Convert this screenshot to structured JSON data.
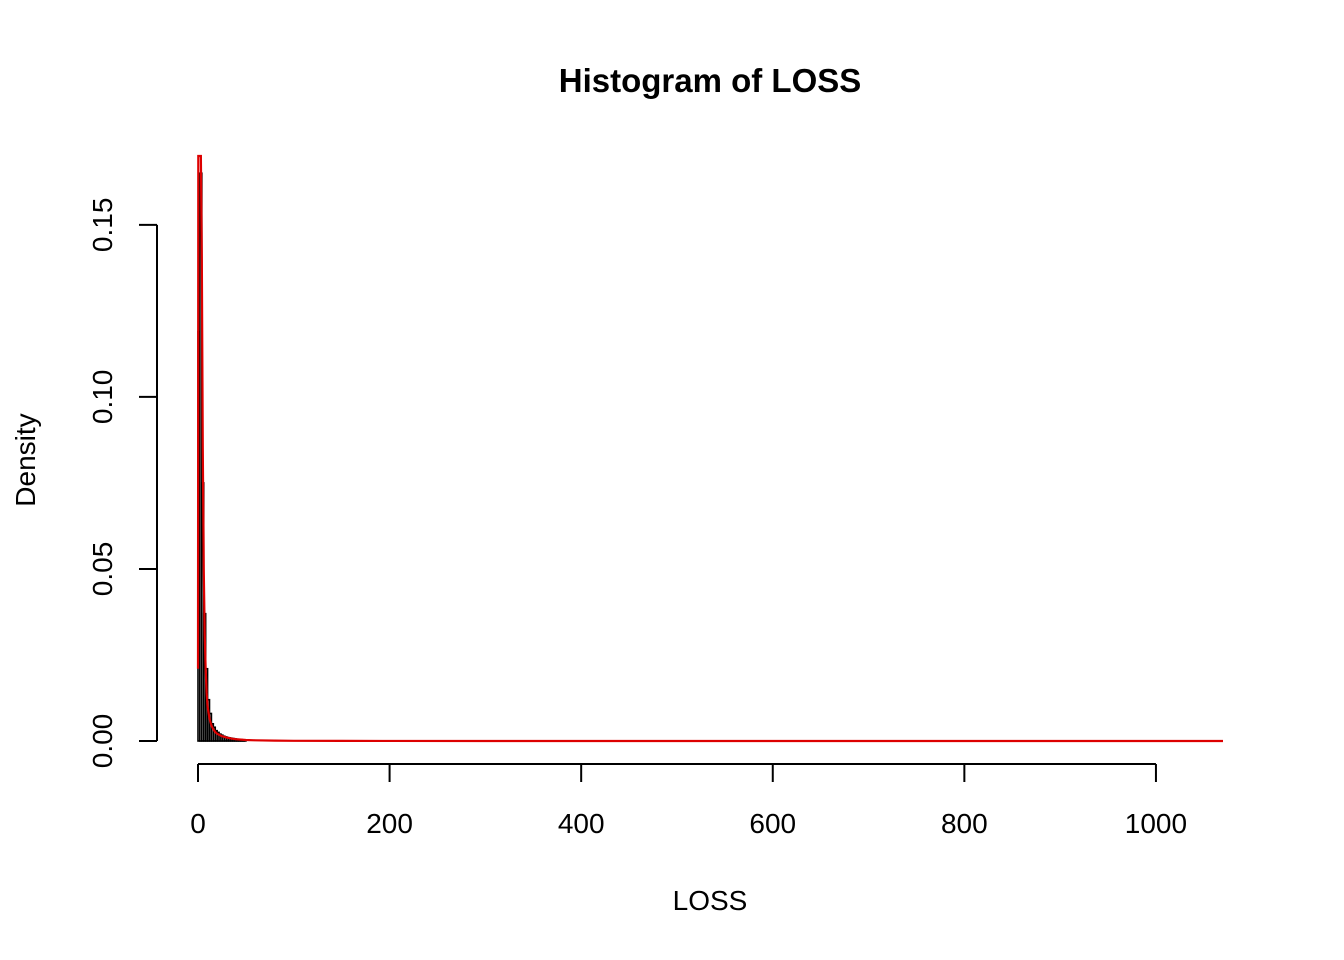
{
  "chart_data": {
    "type": "histogram",
    "title": "Histogram of LOSS",
    "xlabel": "LOSS",
    "ylabel": "Density",
    "xlim": [
      0,
      1070
    ],
    "ylim": [
      0,
      0.17
    ],
    "x_ticks": [
      0,
      200,
      400,
      600,
      800,
      1000
    ],
    "x_tick_labels": [
      "0",
      "200",
      "400",
      "600",
      "800",
      "1000"
    ],
    "y_ticks": [
      0.0,
      0.05,
      0.1,
      0.15
    ],
    "y_tick_labels": [
      "0.00",
      "0.05",
      "0.10",
      "0.15"
    ],
    "bin_width": 2,
    "bars": [
      {
        "x0": 0,
        "x1": 2,
        "density": 0.119
      },
      {
        "x0": 2,
        "x1": 4,
        "density": 0.165
      },
      {
        "x0": 4,
        "x1": 6,
        "density": 0.075
      },
      {
        "x0": 6,
        "x1": 8,
        "density": 0.037
      },
      {
        "x0": 8,
        "x1": 10,
        "density": 0.021
      },
      {
        "x0": 10,
        "x1": 12,
        "density": 0.012
      },
      {
        "x0": 12,
        "x1": 14,
        "density": 0.008
      },
      {
        "x0": 14,
        "x1": 16,
        "density": 0.005
      },
      {
        "x0": 16,
        "x1": 18,
        "density": 0.004
      },
      {
        "x0": 18,
        "x1": 20,
        "density": 0.003
      },
      {
        "x0": 20,
        "x1": 22,
        "density": 0.0025
      },
      {
        "x0": 22,
        "x1": 24,
        "density": 0.002
      },
      {
        "x0": 24,
        "x1": 26,
        "density": 0.0017
      },
      {
        "x0": 26,
        "x1": 28,
        "density": 0.0014
      },
      {
        "x0": 28,
        "x1": 30,
        "density": 0.0012
      },
      {
        "x0": 30,
        "x1": 32,
        "density": 0.001
      },
      {
        "x0": 32,
        "x1": 34,
        "density": 0.0009
      },
      {
        "x0": 34,
        "x1": 36,
        "density": 0.0008
      },
      {
        "x0": 36,
        "x1": 38,
        "density": 0.0007
      },
      {
        "x0": 38,
        "x1": 40,
        "density": 0.0006
      },
      {
        "x0": 40,
        "x1": 42,
        "density": 0.0005
      },
      {
        "x0": 42,
        "x1": 44,
        "density": 0.0004
      },
      {
        "x0": 44,
        "x1": 46,
        "density": 0.0004
      },
      {
        "x0": 46,
        "x1": 48,
        "density": 0.0003
      },
      {
        "x0": 48,
        "x1": 50,
        "density": 0.0003
      }
    ],
    "density_curve": {
      "color": "#dd0000",
      "x": [
        0,
        0.3,
        0.6,
        1,
        1.5,
        2,
        2.5,
        3,
        4,
        5,
        6,
        7,
        8,
        9,
        10,
        12,
        14,
        16,
        18,
        20,
        25,
        30,
        35,
        40,
        50,
        60,
        80,
        100,
        150,
        200,
        300,
        400,
        600,
        800,
        1070
      ],
      "y": [
        0.021,
        0.17,
        0.17,
        0.17,
        0.17,
        0.17,
        0.17,
        0.17,
        0.14,
        0.085,
        0.05,
        0.031,
        0.021,
        0.014,
        0.01,
        0.0065,
        0.0045,
        0.0034,
        0.0026,
        0.0021,
        0.0014,
        0.001,
        0.0007,
        0.0005,
        0.0003,
        0.0002,
        0.0001,
        6e-05,
        3e-05,
        2e-05,
        1e-05,
        5e-06,
        2e-06,
        1e-06,
        0
      ]
    },
    "grid": false,
    "colors": {
      "bars_stroke": "#000000",
      "density": "#dd0000"
    }
  }
}
